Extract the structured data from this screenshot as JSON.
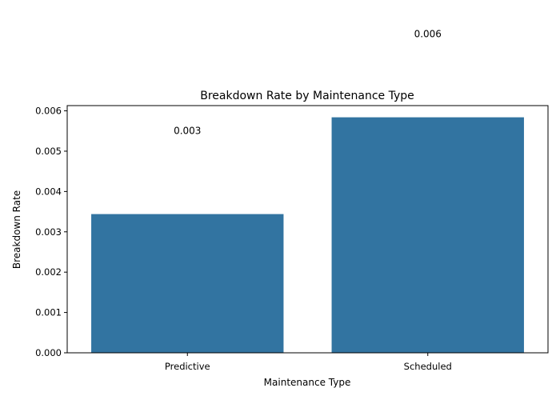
{
  "chart_data": {
    "type": "bar",
    "title": "Breakdown Rate by Maintenance Type",
    "xlabel": "Maintenance Type",
    "ylabel": "Breakdown Rate",
    "categories": [
      "Predictive",
      "Scheduled"
    ],
    "values": [
      0.00344,
      0.00584
    ],
    "data_labels": [
      "0.003",
      "0.006"
    ],
    "ylim": [
      0,
      0.00613
    ],
    "yticks": [
      0,
      0.001,
      0.002,
      0.003,
      0.004,
      0.005,
      0.006
    ],
    "ytick_labels": [
      "0.000",
      "0.001",
      "0.002",
      "0.003",
      "0.004",
      "0.005",
      "0.006"
    ],
    "bar_color": "#3274a1",
    "grid": false,
    "legend": "none"
  }
}
